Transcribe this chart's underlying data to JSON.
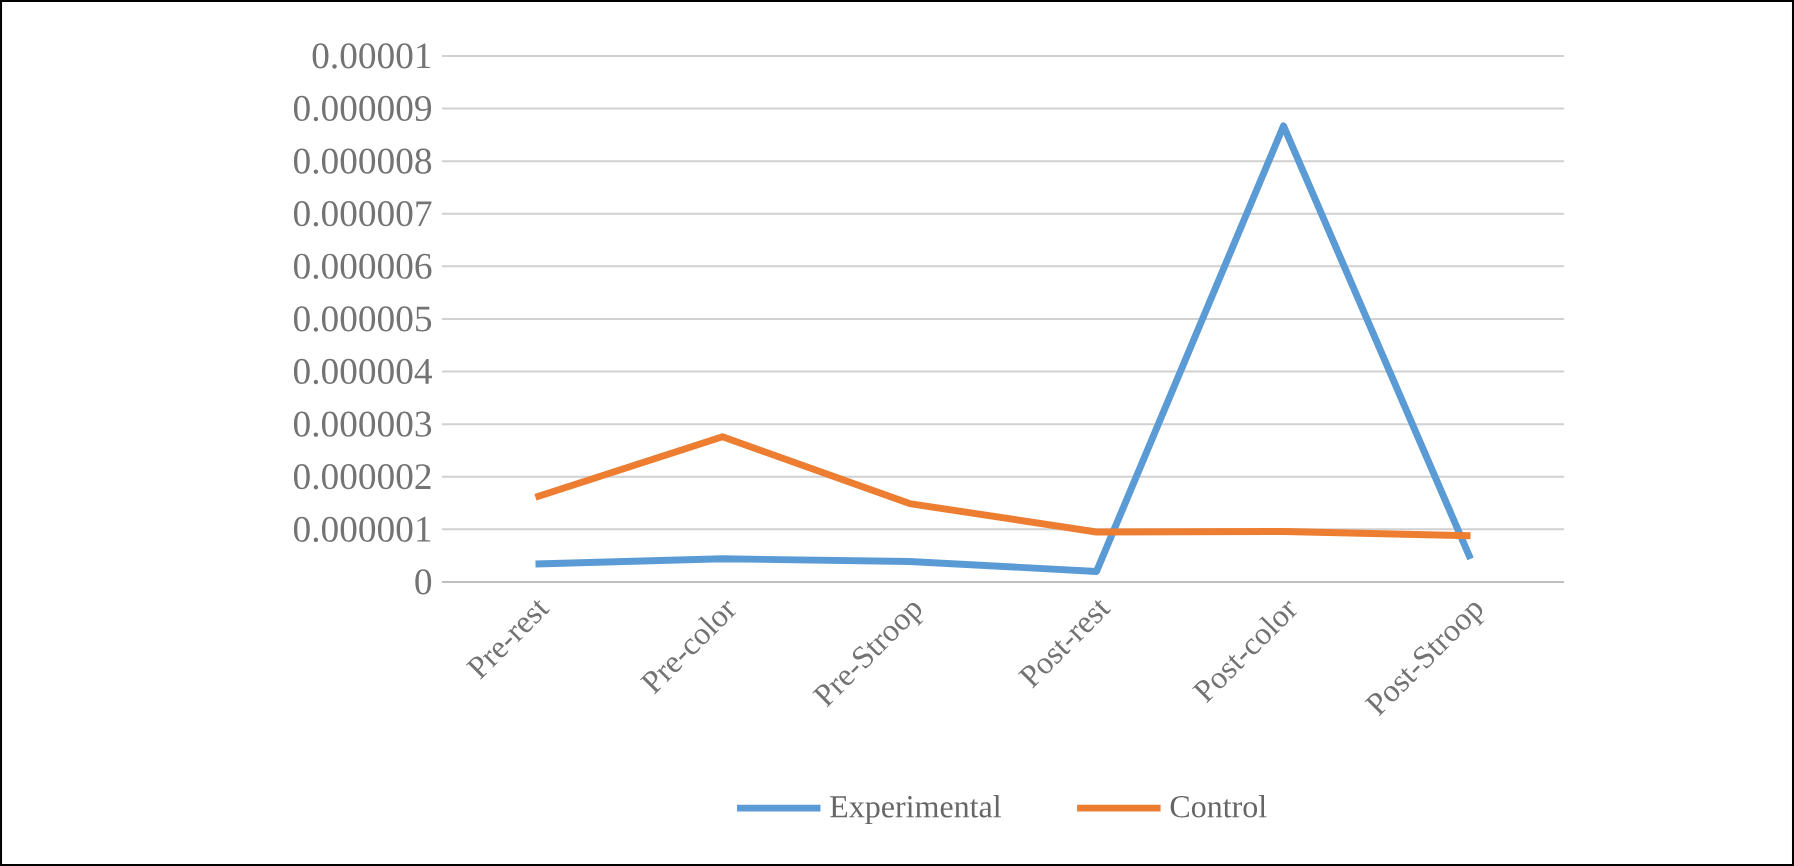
{
  "chart_data": {
    "type": "line",
    "categories": [
      "Pre-rest",
      "Pre-color",
      "Pre-Stroop",
      "Post-rest",
      "Post-color",
      "Post-Stroop"
    ],
    "series": [
      {
        "name": "Experimental",
        "color": "#5b9bd5",
        "values": [
          3.4e-07,
          4.4e-07,
          3.9e-07,
          2e-07,
          8.67e-06,
          4.4e-07
        ]
      },
      {
        "name": "Control",
        "color": "#ed7d31",
        "values": [
          1.61e-06,
          2.76e-06,
          1.49e-06,
          9.5e-07,
          9.6e-07,
          8.8e-07
        ]
      }
    ],
    "ylim": [
      0,
      1e-05
    ],
    "yticks": [
      0,
      {
        "value": 1e-06,
        "label": "0.000001"
      },
      {
        "value": 2e-06,
        "label": "0.000002"
      },
      {
        "value": 3e-06,
        "label": "0.000003"
      },
      {
        "value": 4e-06,
        "label": "0.000004"
      },
      {
        "value": 5e-06,
        "label": "0.000005"
      },
      {
        "value": 6e-06,
        "label": "0.000006"
      },
      {
        "value": 7e-06,
        "label": "0.000007"
      },
      {
        "value": 8e-06,
        "label": "0.000008"
      },
      {
        "value": 9e-06,
        "label": "0.000009"
      },
      {
        "value": 1e-05,
        "label": "0.00001"
      }
    ],
    "grid": "y",
    "legend": "bottom"
  }
}
